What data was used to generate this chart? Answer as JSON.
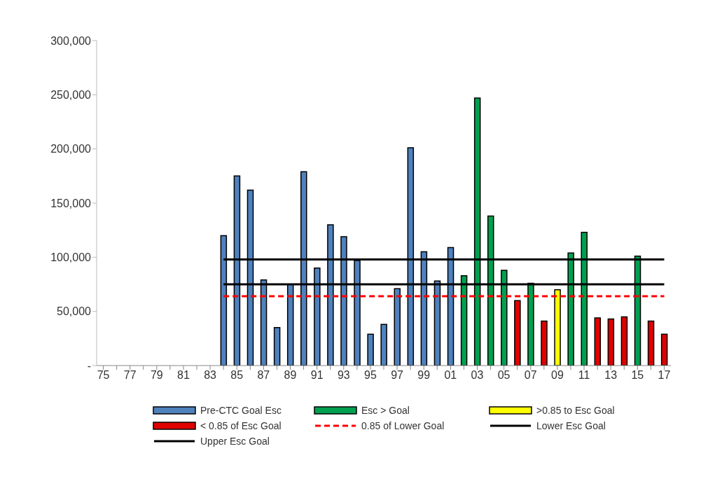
{
  "chart_data": {
    "type": "bar",
    "stacked": true,
    "categories": [
      "75",
      null,
      "77",
      null,
      "79",
      null,
      "81",
      null,
      "83",
      null,
      "85",
      null,
      "87",
      null,
      "89",
      null,
      "91",
      null,
      "93",
      null,
      "95",
      null,
      "97",
      null,
      "99",
      null,
      "01",
      null,
      "03",
      null,
      "05",
      null,
      "07",
      null,
      "09",
      null,
      "11",
      null,
      "13",
      null,
      "15",
      null,
      "17"
    ],
    "series": [
      {
        "name": "Pre-CTC Goal Esc",
        "color": "#4f81bd",
        "values": [
          null,
          null,
          null,
          null,
          null,
          null,
          null,
          null,
          null,
          120000,
          175000,
          162000,
          79000,
          35000,
          75000,
          179000,
          90000,
          130000,
          119000,
          97000,
          29000,
          38000,
          71000,
          201000,
          105000,
          78000,
          109000,
          null,
          null,
          null,
          null,
          null,
          null,
          null,
          null,
          null,
          null,
          null,
          null,
          null,
          null,
          null,
          null
        ]
      },
      {
        "name": "Esc > Goal",
        "color": "#00a050",
        "values": [
          null,
          null,
          null,
          null,
          null,
          null,
          null,
          null,
          null,
          null,
          null,
          null,
          null,
          null,
          null,
          null,
          null,
          null,
          null,
          null,
          null,
          null,
          null,
          null,
          null,
          null,
          null,
          83000,
          247000,
          138000,
          88000,
          null,
          76000,
          null,
          null,
          104000,
          123000,
          null,
          null,
          null,
          101000,
          null,
          null
        ]
      },
      {
        "name": ">0.85 to  Esc Goal",
        "color": "#ffff00",
        "values": [
          null,
          null,
          null,
          null,
          null,
          null,
          null,
          null,
          null,
          null,
          null,
          null,
          null,
          null,
          null,
          null,
          null,
          null,
          null,
          null,
          null,
          null,
          null,
          null,
          null,
          null,
          null,
          null,
          null,
          null,
          null,
          null,
          null,
          null,
          70000,
          null,
          null,
          null,
          null,
          null,
          null,
          null,
          null
        ]
      },
      {
        "name": "< 0.85 of  Esc Goal",
        "color": "#e00000",
        "values": [
          null,
          null,
          null,
          null,
          null,
          null,
          null,
          null,
          null,
          null,
          null,
          null,
          null,
          null,
          null,
          null,
          null,
          null,
          null,
          null,
          null,
          null,
          null,
          null,
          null,
          null,
          null,
          null,
          null,
          null,
          null,
          60000,
          null,
          41000,
          null,
          null,
          null,
          44000,
          43000,
          45000,
          null,
          41000,
          29000
        ]
      },
      {
        "name": "0.85 of Lower Goal",
        "type": "line",
        "line_style": "dashed",
        "color": "#ff0000",
        "values": [
          null,
          null,
          null,
          null,
          null,
          null,
          null,
          null,
          null,
          64000,
          64000,
          64000,
          64000,
          64000,
          64000,
          64000,
          64000,
          64000,
          64000,
          64000,
          64000,
          64000,
          64000,
          64000,
          64000,
          64000,
          64000,
          64000,
          64000,
          64000,
          64000,
          64000,
          64000,
          64000,
          64000,
          64000,
          64000,
          64000,
          64000,
          64000,
          64000,
          64000,
          64000
        ]
      },
      {
        "name": "Lower Esc Goal",
        "type": "line",
        "line_style": "solid",
        "color": "#000000",
        "values": [
          null,
          null,
          null,
          null,
          null,
          null,
          null,
          null,
          null,
          75000,
          75000,
          75000,
          75000,
          75000,
          75000,
          75000,
          75000,
          75000,
          75000,
          75000,
          75000,
          75000,
          75000,
          75000,
          75000,
          75000,
          75000,
          75000,
          75000,
          75000,
          75000,
          75000,
          75000,
          75000,
          75000,
          75000,
          75000,
          75000,
          75000,
          75000,
          75000,
          75000,
          75000
        ]
      },
      {
        "name": "Upper Esc Goal",
        "type": "line",
        "line_style": "solid",
        "color": "#000000",
        "values": [
          null,
          null,
          null,
          null,
          null,
          null,
          null,
          null,
          null,
          98000,
          98000,
          98000,
          98000,
          98000,
          98000,
          98000,
          98000,
          98000,
          98000,
          98000,
          98000,
          98000,
          98000,
          98000,
          98000,
          98000,
          98000,
          98000,
          98000,
          98000,
          98000,
          98000,
          98000,
          98000,
          98000,
          98000,
          98000,
          98000,
          98000,
          98000,
          98000,
          98000,
          98000
        ]
      }
    ],
    "ylim": [
      0,
      300000
    ],
    "yticks": [
      {
        "value": 0,
        "label": "-"
      },
      {
        "value": 50000,
        "label": "50,000"
      },
      {
        "value": 100000,
        "label": "100,000"
      },
      {
        "value": 150000,
        "label": "150,000"
      },
      {
        "value": 200000,
        "label": "200,000"
      },
      {
        "value": 250000,
        "label": "250,000"
      },
      {
        "value": 300000,
        "label": "300,000"
      }
    ],
    "grid": false,
    "legend": "bottom",
    "marker": "none"
  }
}
